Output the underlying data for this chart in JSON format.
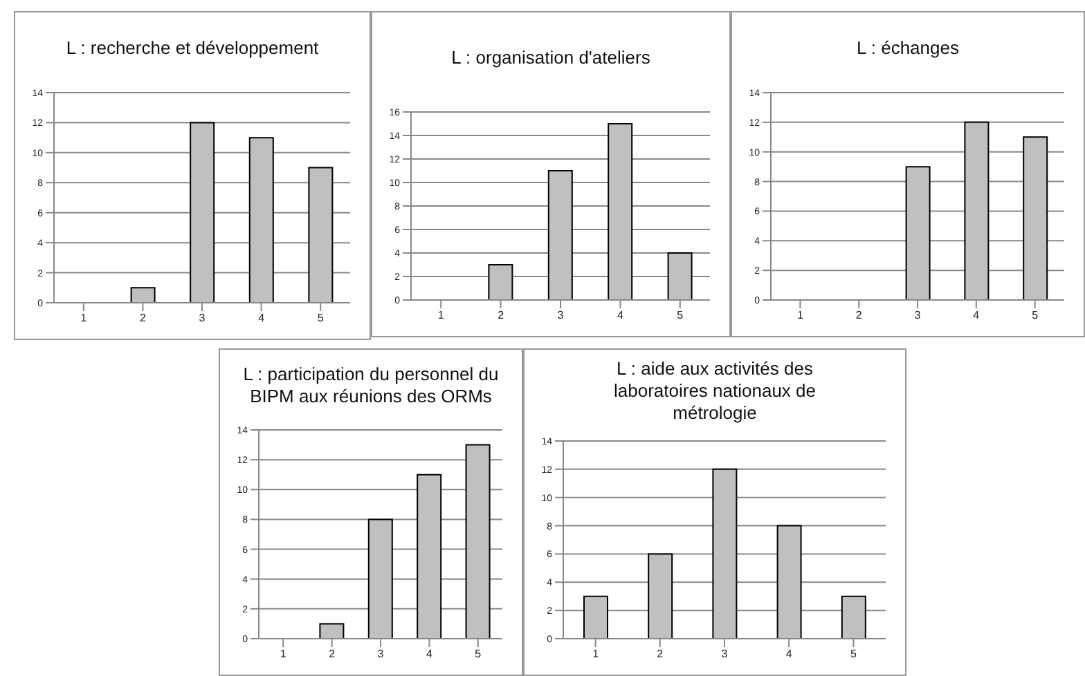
{
  "chart_data": [
    {
      "type": "bar",
      "title": "L : recherche et développement",
      "categories": [
        "1",
        "2",
        "3",
        "4",
        "5"
      ],
      "values": [
        0,
        1,
        12,
        11,
        9
      ],
      "color": "#c0c0c0",
      "ylim": [
        0,
        14
      ],
      "yticks": [
        0,
        2,
        4,
        6,
        8,
        10,
        12,
        14
      ],
      "grid": "y"
    },
    {
      "type": "bar",
      "title": "L : organisation d'ateliers",
      "categories": [
        "1",
        "2",
        "3",
        "4",
        "5"
      ],
      "values": [
        0,
        3,
        11,
        15,
        4
      ],
      "color": "#c0c0c0",
      "ylim": [
        0,
        16
      ],
      "yticks": [
        0,
        2,
        4,
        6,
        8,
        10,
        12,
        14,
        16
      ],
      "grid": "y"
    },
    {
      "type": "bar",
      "title": "L : échanges",
      "categories": [
        "1",
        "2",
        "3",
        "4",
        "5"
      ],
      "values": [
        0,
        0,
        9,
        12,
        11
      ],
      "color": "#c0c0c0",
      "ylim": [
        0,
        14
      ],
      "yticks": [
        0,
        2,
        4,
        6,
        8,
        10,
        12,
        14
      ],
      "grid": "y"
    },
    {
      "type": "bar",
      "title": "L : participation du personnel du BIPM aux réunions des ORMs",
      "categories": [
        "1",
        "2",
        "3",
        "4",
        "5"
      ],
      "values": [
        0,
        1,
        8,
        11,
        13
      ],
      "color": "#c0c0c0",
      "ylim": [
        0,
        14
      ],
      "yticks": [
        0,
        2,
        4,
        6,
        8,
        10,
        12,
        14
      ],
      "grid": "y"
    },
    {
      "type": "bar",
      "title": "L : aide aux activités des laboratoires nationaux de métrologie",
      "categories": [
        "1",
        "2",
        "3",
        "4",
        "5"
      ],
      "values": [
        3,
        6,
        12,
        8,
        3
      ],
      "color": "#c0c0c0",
      "ylim": [
        0,
        14
      ],
      "yticks": [
        0,
        2,
        4,
        6,
        8,
        10,
        12,
        14
      ],
      "grid": "y"
    }
  ]
}
